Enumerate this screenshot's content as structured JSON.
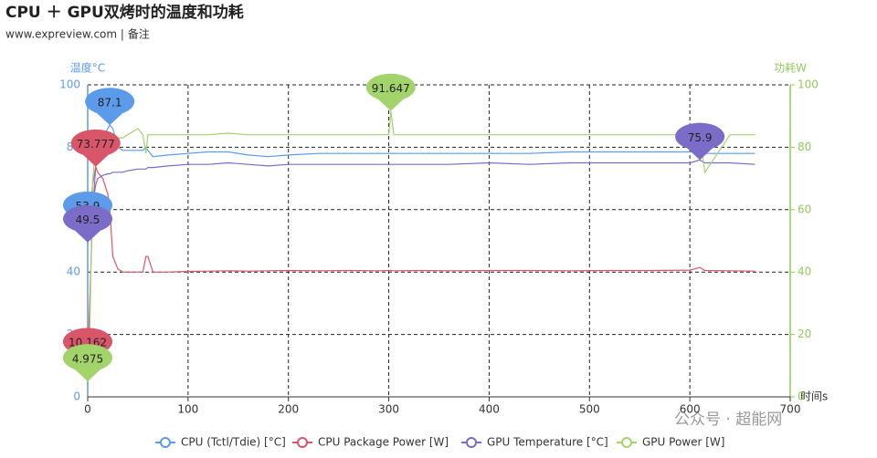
{
  "chart_data": {
    "type": "line",
    "title": "CPU ＋ GPU双烤时的温度和功耗",
    "subtitle": "www.expreview.com | 备注",
    "watermark": "公众号 · 超能网",
    "xlabel": "时间s",
    "ylabel": "温度°C",
    "y2label": "功耗W",
    "xlim": [
      0,
      700
    ],
    "xticks": [
      0,
      100,
      200,
      300,
      400,
      500,
      600,
      700
    ],
    "ylim": [
      0,
      100
    ],
    "yticks": [
      0,
      20,
      40,
      60,
      80,
      100
    ],
    "y2lim": [
      0,
      100
    ],
    "y2ticks": [
      0,
      20,
      40,
      60,
      80,
      100
    ],
    "grid": true,
    "legend": "bottom",
    "x": [
      0,
      2,
      5,
      8,
      10,
      15,
      20,
      22,
      25,
      30,
      35,
      40,
      50,
      55,
      58,
      60,
      65,
      80,
      100,
      120,
      140,
      160,
      180,
      200,
      230,
      260,
      290,
      300,
      302,
      305,
      330,
      360,
      400,
      440,
      480,
      520,
      560,
      600,
      610,
      615,
      640,
      665
    ],
    "series": [
      {
        "name": "CPU (Tctl/Tdie) [°C]",
        "color": "#5b9bea",
        "axis": "y",
        "values": [
          53.9,
          60,
          68,
          74,
          78,
          83,
          86,
          87.1,
          86,
          80,
          79,
          79,
          79,
          79,
          80,
          79,
          77,
          77.5,
          78,
          78.5,
          78.5,
          77.5,
          77,
          77.5,
          78,
          78,
          78,
          78,
          78,
          78,
          78,
          78,
          78,
          78,
          78.5,
          78.5,
          78.5,
          78.5,
          78.5,
          78,
          78,
          78
        ],
        "annotations": [
          {
            "x": 22,
            "value": 87.1
          },
          {
            "x": 0,
            "value": 53.9
          }
        ]
      },
      {
        "name": "CPU Package Power [W]",
        "color": "#d9566a",
        "axis": "y",
        "values": [
          10.162,
          30,
          60,
          73.777,
          72,
          70,
          65,
          60,
          45,
          41,
          40,
          40,
          40,
          40,
          45,
          45,
          40,
          40,
          40.2,
          40.3,
          40.4,
          40.3,
          40.4,
          40.5,
          40.4,
          40.5,
          40.4,
          40.5,
          40.5,
          40.4,
          40.5,
          40.4,
          40.5,
          40.5,
          40.4,
          40.5,
          40.5,
          40.6,
          41.5,
          40.5,
          40.4,
          40.3
        ],
        "annotations": [
          {
            "x": 8,
            "value": 73.777
          },
          {
            "x": 0,
            "value": 10.162
          }
        ]
      },
      {
        "name": "GPU Temperature [°C]",
        "color": "#7b6cc8",
        "axis": "y",
        "values": [
          49.5,
          55,
          62,
          68,
          70,
          71,
          71.5,
          71.5,
          72,
          72,
          72,
          72.5,
          73,
          73,
          73,
          73.5,
          73.5,
          74,
          74.5,
          74.5,
          75,
          74.5,
          74,
          74.5,
          74.5,
          74.5,
          74.5,
          74.5,
          74.5,
          74.5,
          74.5,
          74.5,
          75,
          74.5,
          75,
          75,
          75,
          75,
          75.9,
          75,
          75,
          74.5
        ],
        "annotations": [
          {
            "x": 610,
            "value": 75.9
          },
          {
            "x": 0,
            "value": 49.5
          }
        ]
      },
      {
        "name": "GPU Power [W]",
        "color": "#a3d36b",
        "axis": "y2",
        "values": [
          4.975,
          20,
          70,
          80,
          82,
          85,
          84,
          84,
          84,
          83,
          83,
          84,
          86,
          84,
          78,
          84,
          84,
          84,
          84,
          84,
          84.5,
          84,
          84,
          84,
          84,
          84,
          84,
          84,
          91.647,
          84,
          84,
          84,
          84,
          84,
          84,
          84,
          84,
          84,
          84,
          72,
          84,
          84
        ],
        "annotations": [
          {
            "x": 302,
            "value": 91.647
          },
          {
            "x": 0,
            "value": 4.975
          }
        ]
      }
    ]
  }
}
